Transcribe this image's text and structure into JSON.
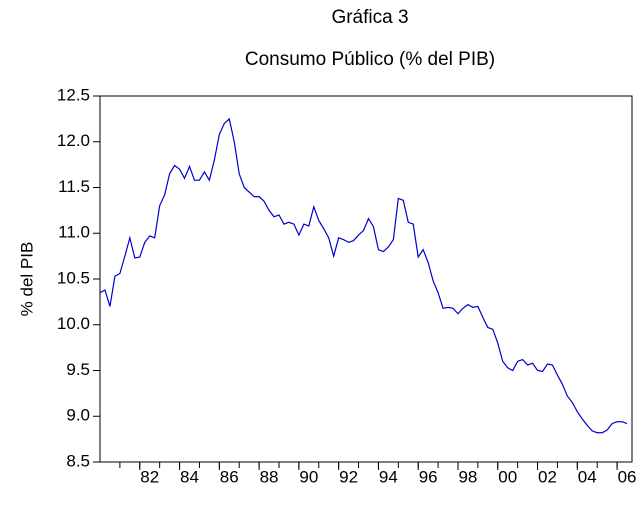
{
  "chart_data": {
    "type": "line",
    "title": "Gráfica 3",
    "subtitle": "Consumo Público (% del PIB)",
    "y_label": "% del PIB",
    "xlim": [
      1980,
      2006.75
    ],
    "ylim": [
      8.5,
      12.5
    ],
    "yticks": [
      8.5,
      {
        "value": 9,
        "label": "9.0"
      },
      9.5,
      {
        "value": 10,
        "label": "10.0"
      },
      10.5,
      {
        "value": 11,
        "label": "11.0"
      },
      11.5,
      {
        "value": 12,
        "label": "12.0"
      },
      12.5
    ],
    "xticks": [
      {
        "value": 1982,
        "label": "82"
      },
      {
        "value": 1984,
        "label": "84"
      },
      {
        "value": 1986,
        "label": "86"
      },
      {
        "value": 1988,
        "label": "88"
      },
      {
        "value": 1990,
        "label": "90"
      },
      {
        "value": 1992,
        "label": "92"
      },
      {
        "value": 1994,
        "label": "94"
      },
      {
        "value": 1996,
        "label": "96"
      },
      {
        "value": 1998,
        "label": "98"
      },
      {
        "value": 2000,
        "label": "00"
      },
      {
        "value": 2002,
        "label": "02"
      },
      {
        "value": 2004,
        "label": "04"
      },
      {
        "value": 2006,
        "label": "06"
      }
    ],
    "x": [
      1980,
      1980.25,
      1980.5,
      1980.75,
      1981,
      1981.25,
      1981.5,
      1981.75,
      1982,
      1982.25,
      1982.5,
      1982.75,
      1983,
      1983.25,
      1983.5,
      1983.75,
      1984,
      1984.25,
      1984.5,
      1984.75,
      1985,
      1985.25,
      1985.5,
      1985.75,
      1986,
      1986.25,
      1986.5,
      1986.75,
      1987,
      1987.25,
      1987.5,
      1987.75,
      1988,
      1988.25,
      1988.5,
      1988.75,
      1989,
      1989.25,
      1989.5,
      1989.75,
      1990,
      1990.25,
      1990.5,
      1990.75,
      1991,
      1991.25,
      1991.5,
      1991.75,
      1992,
      1992.25,
      1992.5,
      1992.75,
      1993,
      1993.25,
      1993.5,
      1993.75,
      1994,
      1994.25,
      1994.5,
      1994.75,
      1995,
      1995.25,
      1995.5,
      1995.75,
      1996,
      1996.25,
      1996.5,
      1996.75,
      1997,
      1997.25,
      1997.5,
      1997.75,
      1998,
      1998.25,
      1998.5,
      1998.75,
      1999,
      1999.25,
      1999.5,
      1999.75,
      2000,
      2000.25,
      2000.5,
      2000.75,
      2001,
      2001.25,
      2001.5,
      2001.75,
      2002,
      2002.25,
      2002.5,
      2002.75,
      2003,
      2003.25,
      2003.5,
      2003.75,
      2004,
      2004.25,
      2004.5,
      2004.75,
      2005,
      2005.25,
      2005.5,
      2005.75,
      2006,
      2006.25,
      2006.5
    ],
    "series": [
      {
        "color": "#0000cc",
        "values": [
          10.35,
          10.38,
          10.2,
          10.53,
          10.56,
          10.75,
          10.95,
          10.73,
          10.74,
          10.9,
          10.97,
          10.95,
          11.3,
          11.42,
          11.65,
          11.74,
          11.7,
          11.6,
          11.73,
          11.58,
          11.58,
          11.67,
          11.58,
          11.8,
          12.08,
          12.2,
          12.25,
          12.0,
          11.65,
          11.5,
          11.45,
          11.4,
          11.4,
          11.35,
          11.25,
          11.18,
          11.2,
          11.1,
          11.12,
          11.1,
          10.98,
          11.1,
          11.08,
          11.29,
          11.14,
          11.05,
          10.95,
          10.75,
          10.95,
          10.93,
          10.9,
          10.92,
          10.98,
          11.03,
          11.16,
          11.07,
          10.82,
          10.8,
          10.85,
          10.93,
          11.38,
          11.36,
          11.12,
          11.1,
          10.74,
          10.82,
          10.68,
          10.48,
          10.35,
          10.18,
          10.19,
          10.18,
          10.12,
          10.18,
          10.22,
          10.19,
          10.2,
          10.08,
          9.97,
          9.95,
          9.8,
          9.6,
          9.53,
          9.5,
          9.6,
          9.62,
          9.56,
          9.58,
          9.5,
          9.49,
          9.57,
          9.56,
          9.45,
          9.35,
          9.22,
          9.15,
          9.05,
          8.97,
          8.9,
          8.84,
          8.82,
          8.82,
          8.85,
          8.92,
          8.94,
          8.94,
          8.92
        ]
      }
    ]
  }
}
